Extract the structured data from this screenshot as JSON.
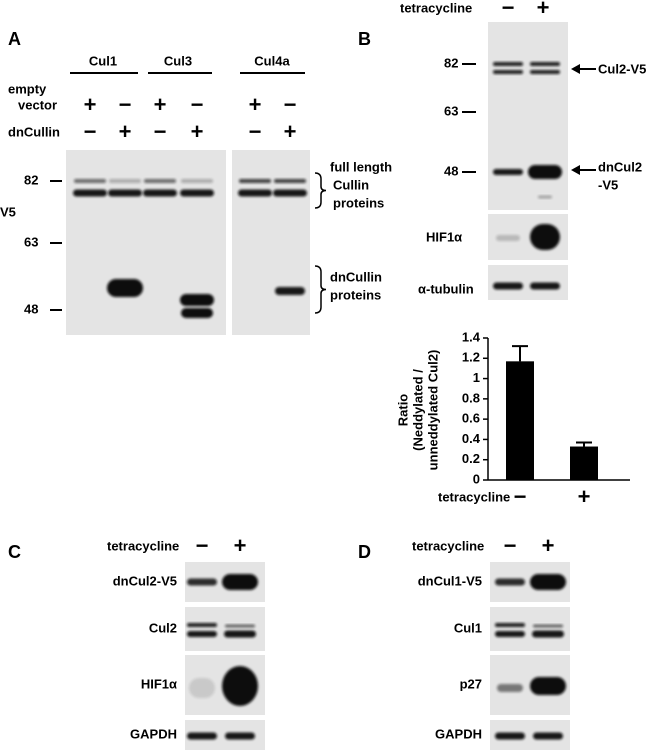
{
  "panel_a": {
    "letter": "A",
    "groups": [
      "Cul1",
      "Cul3",
      "Cul4a"
    ],
    "row1_label": [
      "empty",
      "vector"
    ],
    "row1_signs": [
      "+",
      "−",
      "+",
      "−",
      "+",
      "−"
    ],
    "row2_label": "dnCullin",
    "row2_signs": [
      "−",
      "+",
      "−",
      "+",
      "−",
      "+"
    ],
    "markers": [
      "82",
      "63",
      "48"
    ],
    "antibody": "V5",
    "bracket1": [
      "full length",
      "Cullin",
      "proteins"
    ],
    "bracket2": [
      "dnCullin",
      "proteins"
    ]
  },
  "panel_b": {
    "letter": "B",
    "treatment": "tetracycline",
    "signs": [
      "−",
      "+"
    ],
    "markers": [
      "82",
      "63",
      "48"
    ],
    "arrow1": "Cul2-V5",
    "arrow2": [
      "dnCul2",
      "-V5"
    ],
    "blots": [
      "HIF1α",
      "α-tubulin"
    ]
  },
  "chart_data": {
    "type": "bar",
    "ylabel": [
      "Ratio",
      "(Neddylated /",
      "unneddylated Cul2)"
    ],
    "xlabel": "tetracycline",
    "categories": [
      "−",
      "+"
    ],
    "values": [
      1.17,
      0.33
    ],
    "errors": [
      0.15,
      0.04
    ],
    "color": "#000000",
    "ylim": [
      0,
      1.4
    ],
    "yticks": [
      0,
      0.2,
      0.4,
      0.6,
      0.8,
      1,
      1.2,
      1.4
    ]
  },
  "panel_c": {
    "letter": "C",
    "treatment": "tetracycline",
    "signs": [
      "−",
      "+"
    ],
    "blots": [
      "dnCul2-V5",
      "Cul2",
      "HIF1α",
      "GAPDH"
    ]
  },
  "panel_d": {
    "letter": "D",
    "treatment": "tetracycline",
    "signs": [
      "−",
      "+"
    ],
    "blots": [
      "dnCul1-V5",
      "Cul1",
      "p27",
      "GAPDH"
    ]
  }
}
